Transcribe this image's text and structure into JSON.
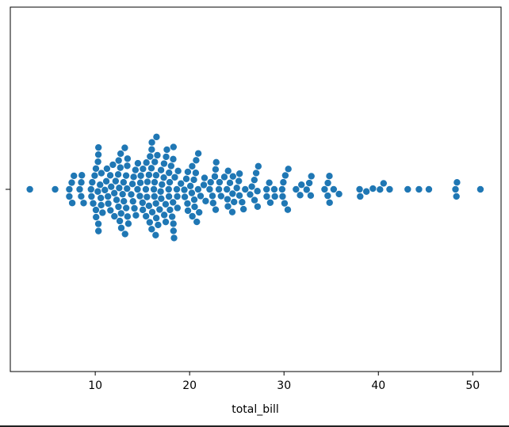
{
  "chart_data": {
    "type": "scatter",
    "variant": "swarm",
    "xlabel": "total_bill",
    "ylabel": "",
    "xlim": [
      1.0,
      53.0
    ],
    "xticks": [
      10,
      20,
      30,
      40,
      50
    ],
    "grid": false,
    "legend": "none",
    "colors": {
      "point": "#1f77b4",
      "point_edge": "#ffffff",
      "frame": "#000000"
    },
    "values": [
      3.07,
      5.75,
      7.25,
      7.25,
      7.51,
      7.56,
      7.74,
      8.35,
      8.51,
      8.52,
      8.58,
      8.77,
      9.55,
      9.6,
      9.68,
      9.78,
      9.94,
      10.07,
      10.07,
      10.09,
      10.27,
      10.29,
      10.33,
      10.33,
      10.34,
      10.34,
      10.51,
      10.59,
      10.63,
      10.65,
      10.77,
      11.02,
      11.17,
      11.24,
      11.35,
      11.38,
      11.59,
      11.61,
      11.69,
      11.87,
      12.02,
      12.03,
      12.16,
      12.26,
      12.43,
      12.46,
      12.48,
      12.54,
      12.6,
      12.66,
      12.69,
      12.74,
      12.76,
      12.9,
      13.0,
      13.03,
      13.13,
      13.16,
      13.27,
      13.28,
      13.37,
      13.39,
      13.42,
      13.42,
      13.51,
      13.81,
      13.94,
      14.0,
      14.07,
      14.15,
      14.26,
      14.31,
      14.48,
      14.52,
      14.73,
      14.78,
      14.83,
      15.01,
      15.04,
      15.06,
      15.36,
      15.38,
      15.42,
      15.48,
      15.53,
      15.69,
      15.69,
      15.77,
      15.81,
      15.95,
      15.98,
      15.98,
      16.0,
      16.04,
      16.21,
      16.27,
      16.29,
      16.31,
      16.4,
      16.43,
      16.45,
      16.47,
      16.49,
      16.58,
      16.66,
      16.82,
      16.93,
      16.97,
      16.99,
      17.07,
      17.26,
      17.29,
      17.31,
      17.46,
      17.47,
      17.51,
      17.59,
      17.78,
      17.81,
      17.82,
      17.89,
      17.92,
      18.04,
      18.15,
      18.24,
      18.26,
      18.28,
      18.29,
      18.29,
      18.35,
      18.43,
      18.64,
      18.69,
      18.71,
      18.78,
      19.08,
      19.44,
      19.49,
      19.65,
      19.77,
      19.81,
      19.82,
      20.08,
      20.23,
      20.27,
      20.29,
      20.45,
      20.49,
      20.53,
      20.65,
      20.69,
      20.76,
      20.9,
      20.92,
      21.01,
      21.16,
      21.5,
      21.58,
      21.7,
      22.12,
      22.23,
      22.42,
      22.49,
      22.67,
      22.75,
      22.76,
      22.82,
      23.1,
      23.17,
      23.33,
      23.68,
      23.95,
      24.01,
      24.06,
      24.08,
      24.27,
      24.52,
      24.55,
      24.59,
      24.71,
      25.0,
      25.21,
      25.28,
      25.29,
      25.56,
      25.71,
      25.89,
      26.41,
      26.59,
      26.86,
      26.88,
      27.05,
      27.18,
      27.2,
      27.28,
      28.15,
      28.17,
      28.44,
      28.55,
      28.97,
      29.03,
      29.8,
      29.85,
      29.93,
      30.06,
      30.14,
      30.4,
      30.46,
      31.27,
      31.71,
      31.85,
      32.4,
      32.68,
      32.83,
      32.9,
      34.3,
      34.63,
      34.65,
      34.81,
      34.83,
      35.26,
      35.83,
      38.01,
      38.07,
      38.73,
      39.42,
      40.17,
      40.55,
      41.19,
      43.11,
      44.3,
      45.35,
      48.17,
      48.27,
      48.33,
      50.81
    ]
  }
}
